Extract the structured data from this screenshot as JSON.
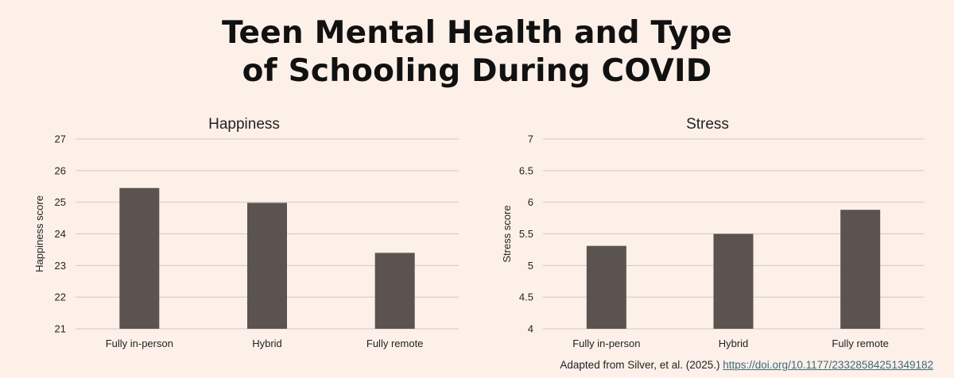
{
  "title_line1": "Teen Mental Health and Type",
  "title_line2": "of Schooling During COVID",
  "colors": {
    "background": "#fdf0e8",
    "bar": "#5a5350",
    "grid": "#d2c8c2",
    "link": "#3d6a78"
  },
  "chart_data": [
    {
      "type": "bar",
      "title": "Happiness",
      "ylabel": "Happiness score",
      "xlabel": "",
      "categories": [
        "Fully in-person",
        "Hybrid",
        "Fully remote"
      ],
      "values": [
        25.45,
        24.98,
        23.4
      ],
      "ylim": [
        21,
        27
      ],
      "yticks": [
        "21",
        "22",
        "23",
        "24",
        "25",
        "26",
        "27"
      ],
      "grid": true,
      "legend": "none"
    },
    {
      "type": "bar",
      "title": "Stress",
      "ylabel": "Stress score",
      "xlabel": "",
      "categories": [
        "Fully in-person",
        "Hybrid",
        "Fully remote"
      ],
      "values": [
        5.31,
        5.5,
        5.88
      ],
      "ylim": [
        4,
        7
      ],
      "yticks": [
        "4",
        "4.5",
        "5",
        "5.5",
        "6",
        "6.5",
        "7"
      ],
      "grid": true,
      "legend": "none"
    }
  ],
  "source": {
    "text": "Adapted from Silver, et al. (2025.) ",
    "link": "https://doi.org/10.1177/23328584251349182"
  }
}
